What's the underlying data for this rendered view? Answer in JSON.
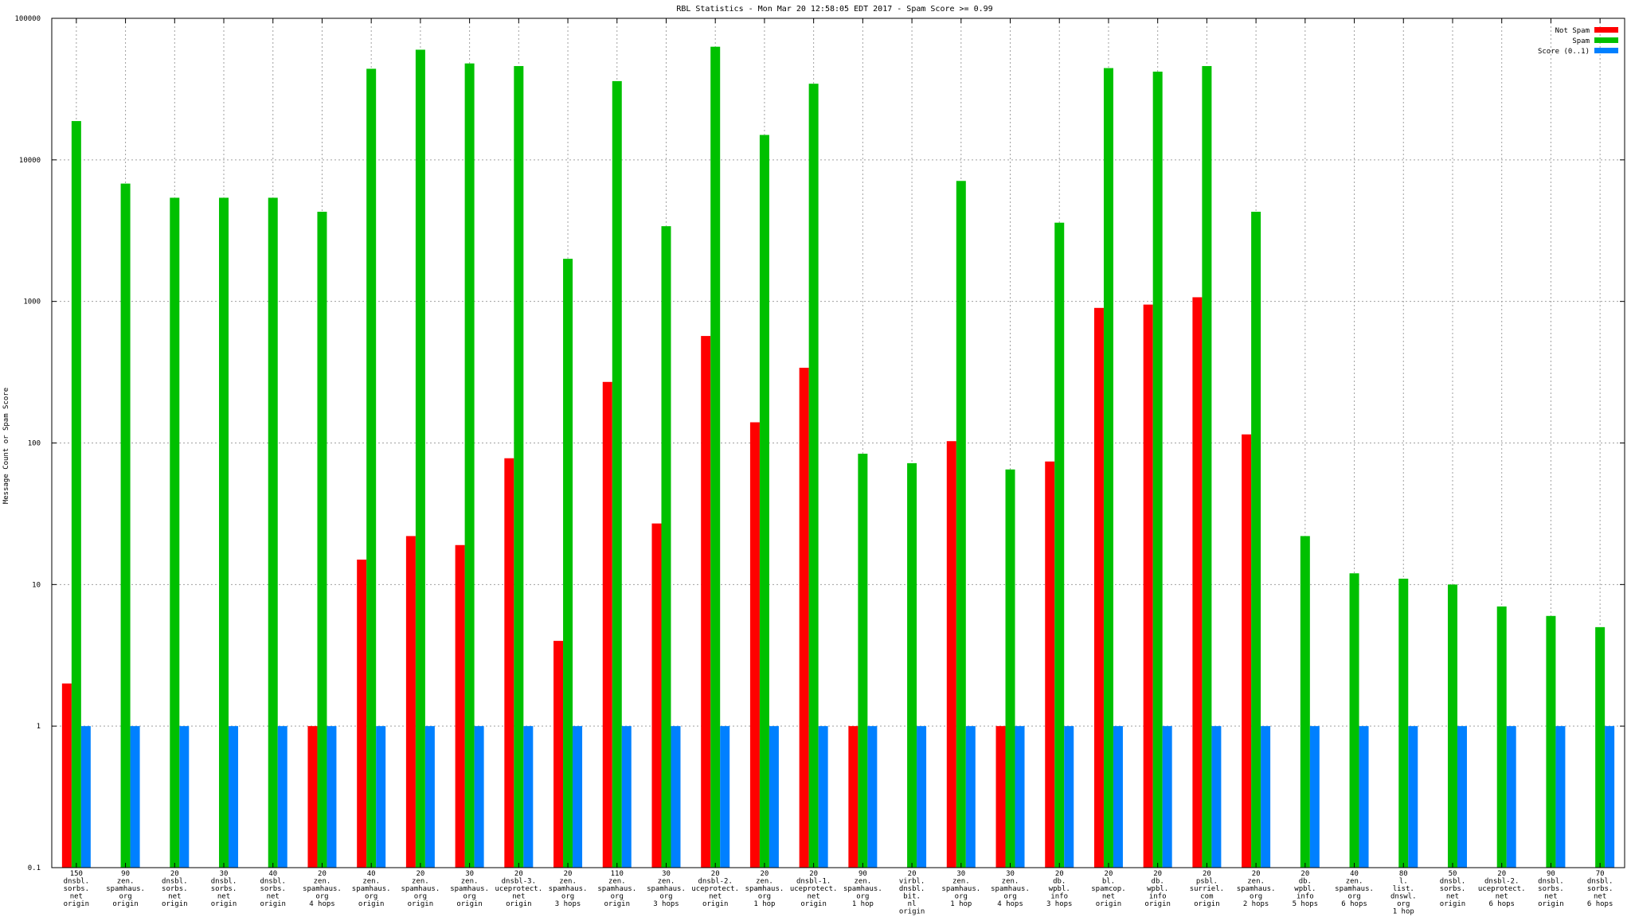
{
  "chart_data": {
    "type": "bar",
    "title": "RBL Statistics - Mon Mar 20 12:58:05 EDT 2017 - Spam Score >= 0.99",
    "ylabel": "Message Count or Spam Score",
    "xlabel": "",
    "yscale": "log",
    "ylim": [
      0.1,
      100000
    ],
    "yticks": [
      "0.1",
      "1",
      "10",
      "100",
      "1000",
      "10000",
      "100000"
    ],
    "grid": true,
    "legend_position": "top-right",
    "categories": [
      [
        "150",
        "dnsbl.",
        "sorbs.",
        "net",
        "origin"
      ],
      [
        "90",
        "zen.",
        "spamhaus.",
        "org",
        "origin"
      ],
      [
        "20",
        "dnsbl.",
        "sorbs.",
        "net",
        "origin"
      ],
      [
        "30",
        "dnsbl.",
        "sorbs.",
        "net",
        "origin"
      ],
      [
        "40",
        "dnsbl.",
        "sorbs.",
        "net",
        "origin"
      ],
      [
        "20",
        "zen.",
        "spamhaus.",
        "org",
        "4 hops"
      ],
      [
        "40",
        "zen.",
        "spamhaus.",
        "org",
        "origin"
      ],
      [
        "20",
        "zen.",
        "spamhaus.",
        "org",
        "origin"
      ],
      [
        "30",
        "zen.",
        "spamhaus.",
        "org",
        "origin"
      ],
      [
        "20",
        "dnsbl-3.",
        "uceprotect.",
        "net",
        "origin"
      ],
      [
        "20",
        "zen.",
        "spamhaus.",
        "org",
        "3 hops"
      ],
      [
        "110",
        "zen.",
        "spamhaus.",
        "org",
        "origin"
      ],
      [
        "30",
        "zen.",
        "spamhaus.",
        "org",
        "3 hops"
      ],
      [
        "20",
        "dnsbl-2.",
        "uceprotect.",
        "net",
        "origin"
      ],
      [
        "20",
        "zen.",
        "spamhaus.",
        "org",
        "1 hop"
      ],
      [
        "20",
        "dnsbl-1.",
        "uceprotect.",
        "net",
        "origin"
      ],
      [
        "90",
        "zen.",
        "spamhaus.",
        "org",
        "1 hop"
      ],
      [
        "20",
        "virbl.",
        "dnsbl.",
        "bit.",
        "nl",
        "origin"
      ],
      [
        "30",
        "zen.",
        "spamhaus.",
        "org",
        "1 hop"
      ],
      [
        "30",
        "zen.",
        "spamhaus.",
        "org",
        "4 hops"
      ],
      [
        "20",
        "db.",
        "wpbl.",
        "info",
        "3 hops"
      ],
      [
        "20",
        "bl.",
        "spamcop.",
        "net",
        "origin"
      ],
      [
        "20",
        "db.",
        "wpbl.",
        "info",
        "origin"
      ],
      [
        "20",
        "psbl.",
        "surriel.",
        "com",
        "origin"
      ],
      [
        "20",
        "zen.",
        "spamhaus.",
        "org",
        "2 hops"
      ],
      [
        "20",
        "db.",
        "wpbl.",
        "info",
        "5 hops"
      ],
      [
        "40",
        "zen.",
        "spamhaus.",
        "org",
        "6 hops"
      ],
      [
        "80",
        "l.",
        "list.",
        "dnswl.",
        "org",
        "1 hop"
      ],
      [
        "50",
        "dnsbl.",
        "sorbs.",
        "net",
        "origin"
      ],
      [
        "20",
        "dnsbl-2.",
        "uceprotect.",
        "net",
        "6 hops"
      ],
      [
        "90",
        "dnsbl.",
        "sorbs.",
        "net",
        "origin"
      ],
      [
        "70",
        "dnsbl.",
        "sorbs.",
        "net",
        "6 hops"
      ]
    ],
    "series": [
      {
        "name": "Not Spam",
        "color": "#ff0000",
        "values": [
          2,
          null,
          null,
          null,
          null,
          1,
          15,
          22,
          19,
          78,
          4,
          270,
          27,
          570,
          140,
          340,
          1,
          null,
          103,
          1,
          74,
          900,
          950,
          1070,
          115,
          null,
          null,
          null,
          null,
          null,
          null,
          null
        ]
      },
      {
        "name": "Spam",
        "color": "#00c000",
        "values": [
          18800,
          6800,
          5400,
          5400,
          5400,
          4300,
          44000,
          60000,
          48000,
          46000,
          2000,
          36000,
          3400,
          63000,
          15000,
          34500,
          84,
          72,
          7100,
          65,
          3600,
          44500,
          42000,
          46000,
          4300,
          22,
          12,
          11,
          10,
          7,
          6,
          5
        ]
      },
      {
        "name": "Score (0..1)",
        "color": "#0080ff",
        "values": [
          1,
          1,
          1,
          1,
          1,
          1,
          1,
          1,
          1,
          1,
          1,
          1,
          1,
          1,
          1,
          1,
          1,
          1,
          1,
          1,
          1,
          1,
          1,
          1,
          1,
          1,
          1,
          1,
          1,
          1,
          1,
          1
        ]
      }
    ]
  }
}
